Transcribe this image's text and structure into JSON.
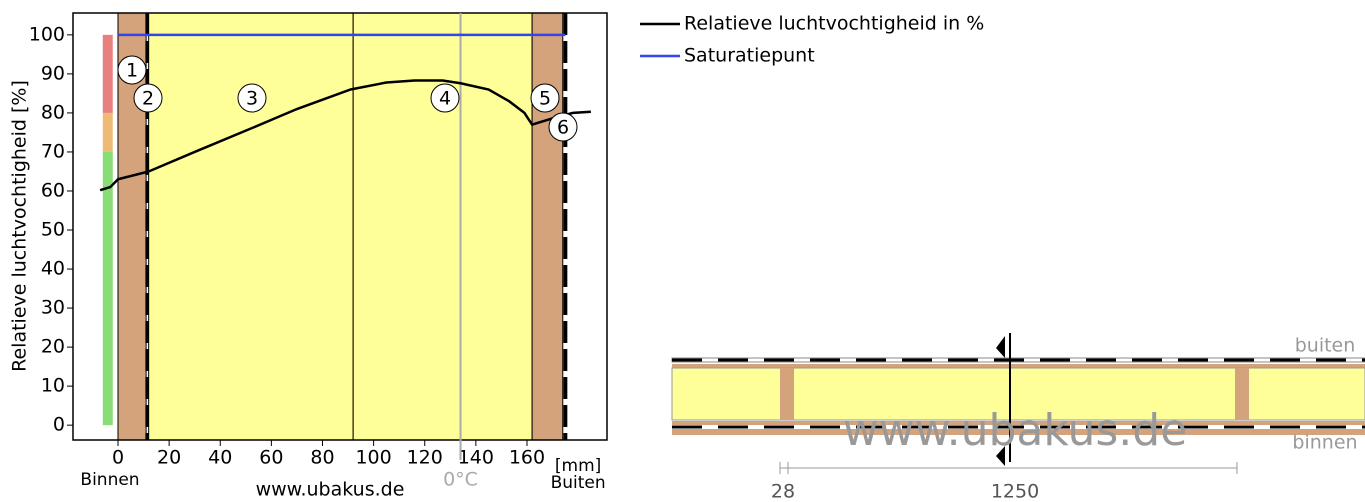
{
  "chart_data": {
    "type": "line",
    "y_label": "Relatieve luchtvochtigheid [%]",
    "x_unit": "[mm]",
    "left_label": "Binnen",
    "right_label": "Buiten",
    "watermark": "www.ubakus.de",
    "zero_c_label": "0°C",
    "zero_c_x": 134,
    "xlim": [
      -17.6,
      191.3
    ],
    "ylim": [
      -3.8,
      105.6
    ],
    "xticks": [
      0,
      20,
      40,
      60,
      80,
      100,
      120,
      140,
      160
    ],
    "yticks": [
      0,
      10,
      20,
      30,
      40,
      50,
      60,
      70,
      80,
      90,
      100
    ],
    "series": [
      {
        "name": "Relatieve luchtvochtigheid in %",
        "color": "#000000",
        "x": [
          -7,
          -3,
          0,
          6,
          12,
          30,
          52,
          70,
          91,
          105,
          116,
          127,
          134,
          145,
          153,
          159,
          162,
          167,
          172,
          178,
          185
        ],
        "values": [
          60.2,
          61,
          63,
          64,
          65,
          70,
          76,
          81,
          86,
          87.8,
          88.3,
          88.3,
          87.6,
          86,
          83,
          80,
          77,
          78,
          79,
          80,
          80.3
        ]
      },
      {
        "name": "Saturatiepunt",
        "color": "#3344ee",
        "x": [
          0,
          175
        ],
        "values": [
          100,
          100
        ]
      }
    ],
    "layers": [
      {
        "label": "1",
        "x0": 0,
        "x1": 11,
        "color": "#d4a37c"
      },
      {
        "label": "2",
        "x0": 11,
        "x1": 12,
        "color": "#000000"
      },
      {
        "label": "3",
        "x0": 12,
        "x1": 92,
        "color": "#ffff99"
      },
      {
        "label": "4",
        "x0": 92,
        "x1": 162,
        "color": "#ffff99"
      },
      {
        "label": "5",
        "x0": 162,
        "x1": 174,
        "color": "#d4a37c"
      },
      {
        "label": "6",
        "x0": 174,
        "x1": 176,
        "color": "#000000"
      }
    ],
    "bands": [
      {
        "from": 0,
        "to": 70,
        "color": "#88dd77"
      },
      {
        "from": 70,
        "to": 80,
        "color": "#eebb77"
      },
      {
        "from": 80,
        "to": 100,
        "color": "#e88080"
      }
    ]
  },
  "section": {
    "outside": "buiten",
    "inside": "binnen",
    "dim_small": "28",
    "dim_large": "1250",
    "watermark": "www.ubakus.de"
  }
}
